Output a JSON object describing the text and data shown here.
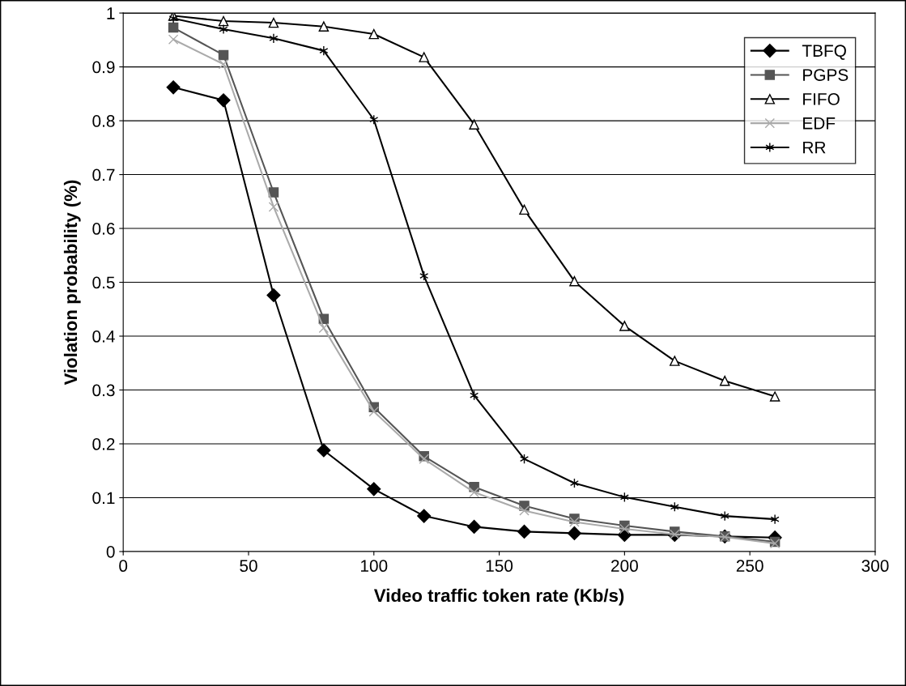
{
  "chart_data": {
    "type": "line",
    "xlabel": "Video traffic token rate (Kb/s)",
    "ylabel": "Violation probability (%)",
    "x": [
      20,
      40,
      60,
      80,
      100,
      120,
      140,
      160,
      180,
      200,
      220,
      240,
      260
    ],
    "xlim": [
      0,
      300
    ],
    "xticks": [
      0,
      50,
      100,
      150,
      200,
      250,
      300
    ],
    "ylim": [
      0,
      1
    ],
    "yticks": [
      0,
      0.1,
      0.2,
      0.3,
      0.4,
      0.5,
      0.6,
      0.7,
      0.8,
      0.9,
      1
    ],
    "grid": "y",
    "legend": "top right",
    "line_style": "solid",
    "series": [
      {
        "name": "TBFQ",
        "color": "#000000",
        "marker": "diamond",
        "values": [
          0.862,
          0.838,
          0.476,
          0.188,
          0.116,
          0.066,
          0.046,
          0.037,
          0.034,
          0.031,
          0.031,
          0.028,
          0.026
        ]
      },
      {
        "name": "PGPS",
        "color": "#555555",
        "marker": "square",
        "values": [
          0.973,
          0.922,
          0.667,
          0.432,
          0.268,
          0.177,
          0.12,
          0.085,
          0.061,
          0.048,
          0.037,
          0.028,
          0.018
        ]
      },
      {
        "name": "FIFO",
        "color": "#000000",
        "marker": "triangle",
        "values": [
          0.995,
          0.985,
          0.982,
          0.975,
          0.961,
          0.918,
          0.793,
          0.635,
          0.502,
          0.419,
          0.354,
          0.317,
          0.288
        ]
      },
      {
        "name": "EDF",
        "color": "#aaaaaa",
        "marker": "cross",
        "values": [
          0.951,
          0.905,
          0.64,
          0.415,
          0.26,
          0.172,
          0.11,
          0.076,
          0.055,
          0.042,
          0.032,
          0.027,
          0.015
        ]
      },
      {
        "name": "RR",
        "color": "#000000",
        "marker": "cross",
        "values": [
          0.99,
          0.97,
          0.953,
          0.93,
          0.802,
          0.512,
          0.29,
          0.172,
          0.127,
          0.101,
          0.083,
          0.066,
          0.06
        ]
      }
    ]
  }
}
